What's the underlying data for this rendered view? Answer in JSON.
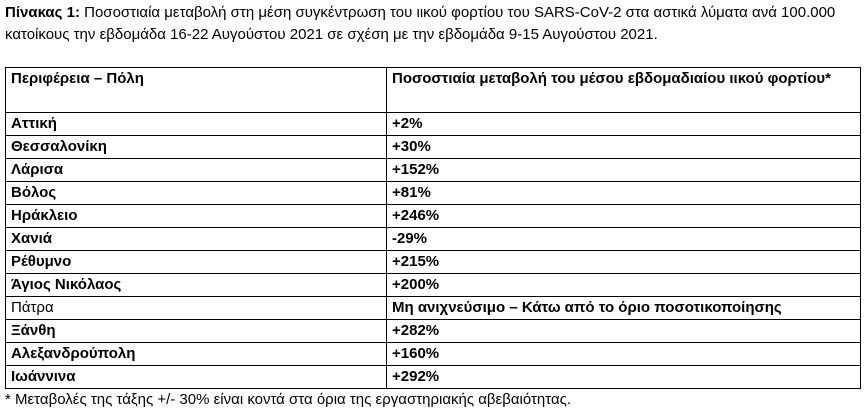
{
  "caption": {
    "label": "Πίνακας 1:",
    "text": " Ποσοστιαία μεταβολή στη μέση συγκέντρωση του ιικού φορτίου του SARS-CoV-2 στα αστικά λύματα ανά 100.000 κατοίκους την εβδομάδα 16-22 Αυγούστου 2021 σε σχέση με την εβδομάδα 9-15 Αυγούστου 2021."
  },
  "table": {
    "headers": [
      "Περιφέρεια – Πόλη",
      "Ποσοστιαία μεταβολή του μέσου εβδομαδιαίου ιικού φορτίου*"
    ],
    "rows": [
      {
        "region": "Αττική",
        "change": "+2%"
      },
      {
        "region": "Θεσσαλονίκη",
        "change": "+30%"
      },
      {
        "region": "Λάρισα",
        "change": "+152%"
      },
      {
        "region": "Βόλος",
        "change": "+81%"
      },
      {
        "region": "Ηράκλειο",
        "change": "+246%"
      },
      {
        "region": "Χανιά",
        "change": "-29%"
      },
      {
        "region": "Ρέθυμνο",
        "change": "+215%"
      },
      {
        "region": "Άγιος Νικόλαος",
        "change": "+200%"
      },
      {
        "region": "Πάτρα",
        "change": "Μη ανιχνεύσιμο – Κάτω από το όριο ποσοτικοποίησης"
      },
      {
        "region": "Ξάνθη",
        "change": "+282%"
      },
      {
        "region": "Αλεξανδρούπολη",
        "change": "+160%"
      },
      {
        "region": "Ιωάννινα",
        "change": "+292%"
      }
    ]
  },
  "footnote": "* Μεταβολές της τάξης +/- 30% είναι κοντά στα όρια της εργαστηριακής αβεβαιότητας."
}
